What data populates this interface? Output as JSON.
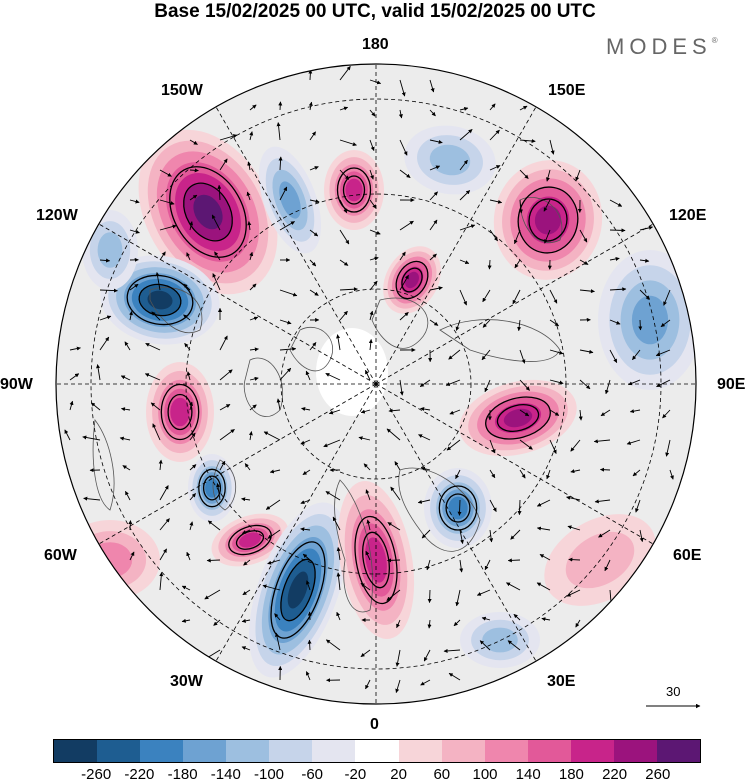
{
  "title": "Base 15/02/2025 00 UTC, valid 15/02/2025 00 UTC",
  "brand": "MODES",
  "brand_mark": "®",
  "longitude_labels": {
    "top": "180",
    "bottom": "0",
    "left": "90W",
    "right": "90E",
    "upper_left_150": "150W",
    "upper_right_150": "150E",
    "left_120": "120W",
    "right_120": "120E",
    "lower_left_60": "60W",
    "lower_right_60": "60E",
    "lower_left_30": "30W",
    "lower_right_30": "30E"
  },
  "vector_scale_label": "30",
  "colorbar": {
    "colors": [
      "#123c63",
      "#1e5d91",
      "#3b82bf",
      "#6ea2d2",
      "#9dbfe0",
      "#c6d4ea",
      "#e4e5f0",
      "#ffffff",
      "#f7d5d9",
      "#f4b3c3",
      "#ef86ad",
      "#e25999",
      "#c8248a",
      "#9b137d",
      "#5c1773"
    ],
    "tick_labels": [
      "-260",
      "-220",
      "-180",
      "-140",
      "-100",
      "-60",
      "-20",
      "20",
      "60",
      "100",
      "140",
      "180",
      "220",
      "260"
    ]
  },
  "anomaly_centers": [
    {
      "name": "high-150W",
      "sign": "pos",
      "level": 260
    },
    {
      "name": "low-120W",
      "sign": "neg",
      "level": 260
    },
    {
      "name": "low-near-180",
      "sign": "neg",
      "level": 120
    },
    {
      "name": "high-near-170W",
      "sign": "pos",
      "level": 180
    },
    {
      "name": "low-near-165E",
      "sign": "neg",
      "level": 100
    },
    {
      "name": "high-140E",
      "sign": "pos",
      "level": 200
    },
    {
      "name": "low-100E",
      "sign": "neg",
      "level": 120
    },
    {
      "name": "high-150E-inner",
      "sign": "pos",
      "level": 200
    },
    {
      "name": "high-80W",
      "sign": "pos",
      "level": 180
    },
    {
      "name": "low-60W",
      "sign": "neg",
      "level": 180
    },
    {
      "name": "high-50W",
      "sign": "pos",
      "level": 180
    },
    {
      "name": "low-40W",
      "sign": "neg",
      "level": 240
    },
    {
      "name": "high-10W",
      "sign": "pos",
      "level": 180
    },
    {
      "name": "low-20E",
      "sign": "neg",
      "level": 160
    },
    {
      "name": "high-75E",
      "sign": "pos",
      "level": 200
    },
    {
      "name": "low-35E",
      "sign": "neg",
      "level": 80
    },
    {
      "name": "high-50E",
      "sign": "pos",
      "level": 60
    },
    {
      "name": "low-130W",
      "sign": "neg",
      "level": 80
    },
    {
      "name": "high-70W",
      "sign": "pos",
      "level": 100
    }
  ]
}
